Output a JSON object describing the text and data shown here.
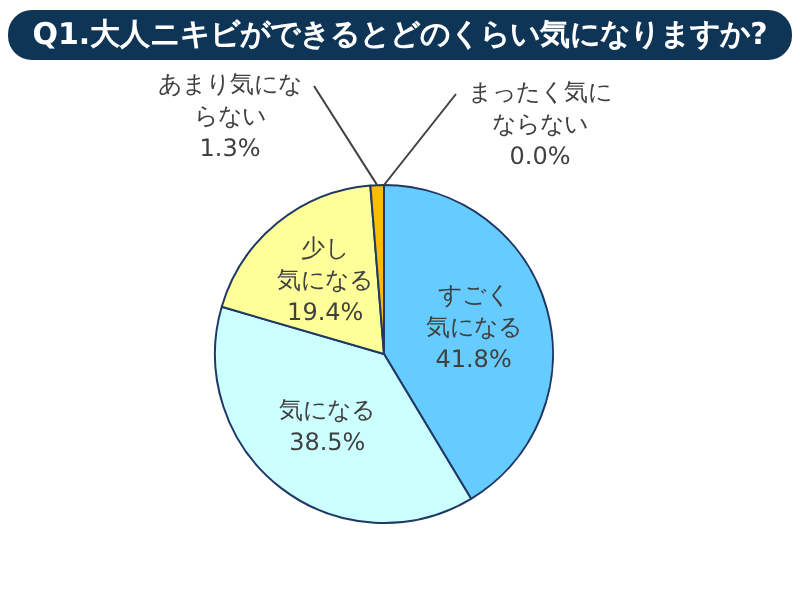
{
  "chart_data": {
    "type": "pie",
    "title": "Q1.大人ニキビができるとどのくらい気になりますか?",
    "categories": [
      "すごく気になる",
      "気になる",
      "少し気になる",
      "あまり気にならない",
      "まったく気にならない"
    ],
    "values": [
      41.8,
      38.5,
      19.4,
      1.3,
      0.0
    ],
    "colors": [
      "#66ccff",
      "#ccffff",
      "#ffff99",
      "#ffbb00",
      "#ff8800"
    ],
    "value_labels": [
      "41.8%",
      "38.5%",
      "19.4%",
      "1.3%",
      "0.0%"
    ],
    "legend": false
  }
}
